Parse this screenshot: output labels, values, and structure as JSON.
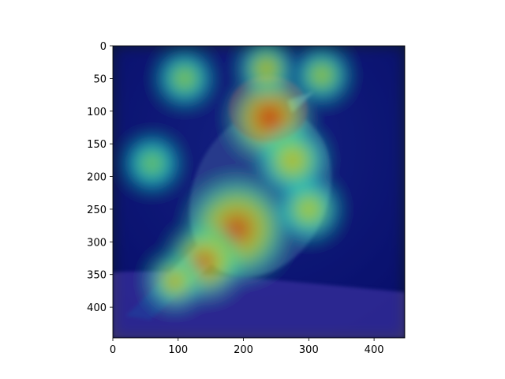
{
  "chart_data": {
    "type": "heatmap",
    "title": "",
    "xlabel": "",
    "ylabel": "",
    "xlim": [
      0,
      447
    ],
    "ylim": [
      447,
      0
    ],
    "xticks": [
      0,
      100,
      200,
      300,
      400
    ],
    "yticks": [
      0,
      50,
      100,
      150,
      200,
      250,
      300,
      350,
      400
    ],
    "grid": false,
    "colormap": "jet",
    "background_image": "bird-on-branch-photo",
    "hotspots": [
      {
        "x": 240,
        "y": 110,
        "value": 1.0,
        "spread": 60
      },
      {
        "x": 235,
        "y": 35,
        "value": 0.7,
        "spread": 40
      },
      {
        "x": 190,
        "y": 280,
        "value": 0.95,
        "spread": 75
      },
      {
        "x": 140,
        "y": 330,
        "value": 0.9,
        "spread": 55
      },
      {
        "x": 95,
        "y": 360,
        "value": 0.75,
        "spread": 40
      },
      {
        "x": 300,
        "y": 250,
        "value": 0.65,
        "spread": 45
      },
      {
        "x": 110,
        "y": 50,
        "value": 0.55,
        "spread": 40
      },
      {
        "x": 60,
        "y": 180,
        "value": 0.5,
        "spread": 40
      },
      {
        "x": 320,
        "y": 45,
        "value": 0.6,
        "spread": 40
      },
      {
        "x": 275,
        "y": 175,
        "value": 0.7,
        "spread": 50
      }
    ]
  }
}
